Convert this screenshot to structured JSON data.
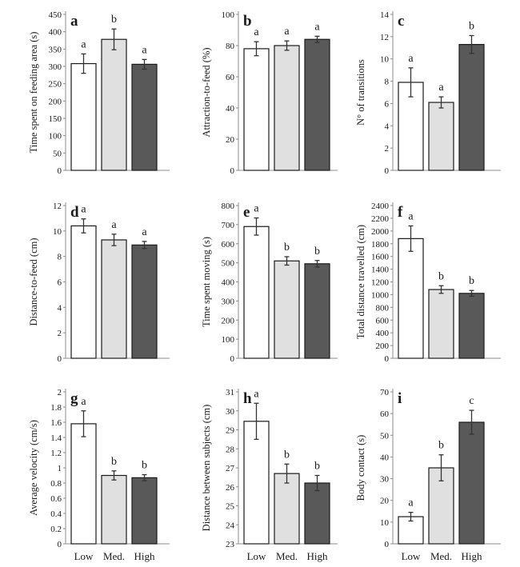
{
  "colors": {
    "Low": "#ffffff",
    "Med.": "#e0e0e0",
    "High": "#595959"
  },
  "chart_data": [
    {
      "type": "bar",
      "panel": "a",
      "categories": [
        "Low",
        "Med.",
        "High"
      ],
      "values": [
        308,
        378,
        306
      ],
      "errors": [
        28,
        30,
        14
      ],
      "letters": [
        "a",
        "b",
        "a"
      ],
      "ylabel": "Time spent on feeding area (s)",
      "ylim": [
        0,
        450
      ],
      "yticks": [
        0,
        50,
        100,
        150,
        200,
        250,
        300,
        350,
        400,
        450
      ]
    },
    {
      "type": "bar",
      "panel": "b",
      "categories": [
        "Low",
        "Med.",
        "High"
      ],
      "values": [
        78,
        80,
        84
      ],
      "errors": [
        4.5,
        3,
        2
      ],
      "letters": [
        "a",
        "a",
        "a"
      ],
      "ylabel": "Attraction-to-feed (%)",
      "ylim": [
        0,
        100
      ],
      "yticks": [
        0,
        20,
        40,
        60,
        80,
        100
      ]
    },
    {
      "type": "bar",
      "panel": "c",
      "categories": [
        "Low",
        "Med.",
        "High"
      ],
      "values": [
        7.9,
        6.1,
        11.3
      ],
      "errors": [
        1.3,
        0.5,
        0.8
      ],
      "letters": [
        "a",
        "a",
        "b"
      ],
      "ylabel": "N° of transitions",
      "ylim": [
        0,
        14
      ],
      "yticks": [
        0,
        2,
        4,
        6,
        8,
        10,
        12,
        14
      ]
    },
    {
      "type": "bar",
      "panel": "d",
      "categories": [
        "Low",
        "Med.",
        "High"
      ],
      "values": [
        10.4,
        9.3,
        8.9
      ],
      "errors": [
        0.55,
        0.45,
        0.28
      ],
      "letters": [
        "a",
        "a",
        "a"
      ],
      "ylabel": "Distance-to-feed (cm)",
      "ylim": [
        0,
        12
      ],
      "yticks": [
        0,
        2,
        4,
        6,
        8,
        10,
        12
      ]
    },
    {
      "type": "bar",
      "panel": "e",
      "categories": [
        "Low",
        "Med.",
        "High"
      ],
      "values": [
        690,
        510,
        495
      ],
      "errors": [
        45,
        22,
        17
      ],
      "letters": [
        "a",
        "b",
        "b"
      ],
      "ylabel": "Time spent moving (s)",
      "ylim": [
        0,
        800
      ],
      "yticks": [
        0,
        100,
        200,
        300,
        400,
        500,
        600,
        700,
        800
      ]
    },
    {
      "type": "bar",
      "panel": "f",
      "categories": [
        "Low",
        "Med.",
        "High"
      ],
      "values": [
        1880,
        1080,
        1020
      ],
      "errors": [
        200,
        60,
        45
      ],
      "letters": [
        "a",
        "b",
        "b"
      ],
      "ylabel": "Total distance travelled (cm)",
      "ylim": [
        0,
        2400
      ],
      "yticks": [
        0,
        200,
        400,
        600,
        800,
        1000,
        1200,
        1400,
        1600,
        1800,
        2000,
        2200,
        2400
      ]
    },
    {
      "type": "bar",
      "panel": "g",
      "categories": [
        "Low",
        "Med.",
        "High"
      ],
      "values": [
        1.58,
        0.9,
        0.87
      ],
      "errors": [
        0.17,
        0.06,
        0.04
      ],
      "letters": [
        "a",
        "b",
        "b"
      ],
      "ylabel": "Average velocity (cm/s)",
      "ylim": [
        0,
        2
      ],
      "yticks": [
        0,
        0.2,
        0.4,
        0.6,
        0.8,
        1,
        1.2,
        1.4,
        1.6,
        1.8,
        2
      ]
    },
    {
      "type": "bar",
      "panel": "h",
      "categories": [
        "Low",
        "Med.",
        "High"
      ],
      "values": [
        29.45,
        26.7,
        26.2
      ],
      "errors": [
        0.95,
        0.5,
        0.4
      ],
      "letters": [
        "a",
        "b",
        "b"
      ],
      "ylabel": "Distance between subjects (cm)",
      "ylim": [
        23,
        31
      ],
      "yticks": [
        23,
        24,
        25,
        26,
        27,
        28,
        29,
        30,
        31
      ]
    },
    {
      "type": "bar",
      "panel": "i",
      "categories": [
        "Low",
        "Med.",
        "High"
      ],
      "values": [
        12.5,
        35,
        56
      ],
      "errors": [
        2,
        6,
        5.5
      ],
      "letters": [
        "a",
        "b",
        "c"
      ],
      "ylabel": "Body contact (s)",
      "ylim": [
        0,
        70
      ],
      "yticks": [
        0,
        10,
        20,
        30,
        40,
        50,
        60,
        70
      ]
    }
  ]
}
